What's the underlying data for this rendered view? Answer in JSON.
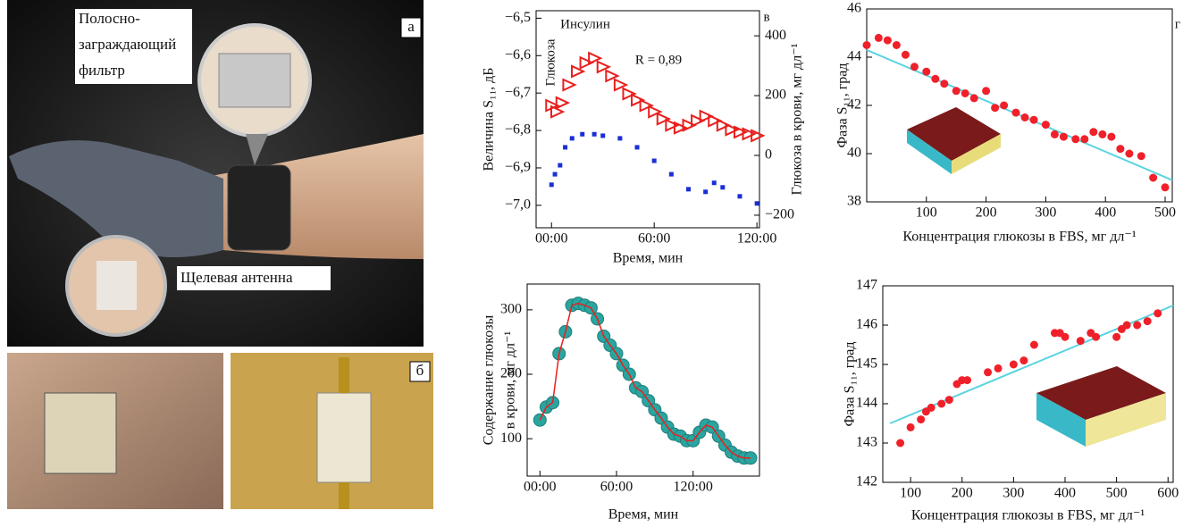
{
  "panels": {
    "a": {
      "label": "а",
      "filter_label": [
        "Полосно-",
        "заграждающий",
        "фильтр"
      ],
      "antenna_label": "Щелевая антенна"
    },
    "b": {
      "label": "б"
    }
  },
  "chart_data": [
    {
      "type": "line",
      "panel_label": "в",
      "annotations": [
        "Глюкоза",
        "Инсулин",
        "R = 0,89"
      ],
      "xlabel": "Время, мин",
      "ylabel": [
        "Величина S₁₁, дБ"
      ],
      "y2label": "Глюкоза в крови, мг дл⁻¹",
      "xlim": [
        -9,
        121.5
      ],
      "xticks": [
        {
          "value": 0,
          "label": "00:00"
        },
        {
          "value": 60,
          "label": "60:00"
        },
        {
          "value": 120,
          "label": "120:00"
        }
      ],
      "ylim": [
        -7.06,
        -6.48
      ],
      "yticks": [
        {
          "value": -6.5,
          "label": "−6,5"
        },
        {
          "value": -6.6,
          "label": "−6,6"
        },
        {
          "value": -6.7,
          "label": "−6,7"
        },
        {
          "value": -6.8,
          "label": "−6,8"
        },
        {
          "value": -6.9,
          "label": "−6,9"
        },
        {
          "value": -7.0,
          "label": "−7,0"
        }
      ],
      "y2lim": [
        -242,
        484
      ],
      "y2ticks": [
        400,
        200,
        0,
        {
          "value": -200,
          "label": "−200"
        }
      ],
      "series": [
        {
          "color": "#e8201e",
          "marker": "triangle",
          "axis": "y2",
          "x": [
            0,
            3,
            6,
            10,
            15,
            20,
            25,
            30,
            35,
            40,
            45,
            50,
            55,
            60,
            65,
            70,
            75,
            80,
            85,
            90,
            95,
            100,
            105,
            110,
            115,
            120
          ],
          "values": [
            167,
            146,
            176,
            236,
            281,
            310,
            325,
            296,
            266,
            236,
            206,
            185,
            167,
            146,
            122,
            101,
            92,
            101,
            116,
            131,
            116,
            101,
            86,
            78,
            72,
            66
          ]
        },
        {
          "color": "#1a2fd6",
          "marker": "square",
          "x": [
            0,
            2,
            5,
            8,
            12,
            18,
            25,
            30,
            40,
            50,
            60,
            70,
            80,
            90,
            95,
            100,
            110,
            120
          ],
          "values": [
            -6.945,
            -6.917,
            -6.893,
            -6.845,
            -6.821,
            -6.81,
            -6.81,
            -6.814,
            -6.821,
            -6.845,
            -6.881,
            -6.917,
            -6.957,
            -6.964,
            -6.94,
            -6.952,
            -6.976,
            -6.995
          ]
        }
      ]
    },
    {
      "type": "line",
      "xlabel": "Время, мин",
      "ylabel": [
        "Содержание глюкозы",
        "в крови, мг дл⁻¹"
      ],
      "xlim": [
        -10,
        172
      ],
      "xticks": [
        {
          "value": 0,
          "label": "00:00"
        },
        {
          "value": 60,
          "label": "60:00"
        },
        {
          "value": 120,
          "label": "120:00"
        }
      ],
      "ylim": [
        42,
        340
      ],
      "yticks": [
        100,
        200,
        300
      ],
      "series": [
        {
          "color": "#2aa5a0",
          "marker": "circle",
          "line_color": "#e8201e",
          "x": [
            0,
            5,
            10,
            15,
            20,
            25,
            30,
            35,
            40,
            45,
            50,
            55,
            60,
            65,
            70,
            75,
            80,
            85,
            90,
            95,
            100,
            105,
            110,
            115,
            120,
            125,
            130,
            135,
            140,
            145,
            150,
            155,
            160,
            165
          ],
          "values": [
            129,
            149,
            156,
            232,
            266,
            307,
            310,
            307,
            303,
            286,
            259,
            245,
            232,
            214,
            200,
            179,
            173,
            159,
            145,
            132,
            118,
            107,
            104,
            97,
            97,
            110,
            121,
            118,
            104,
            90,
            79,
            73,
            70,
            70
          ]
        }
      ]
    },
    {
      "type": "scatter",
      "panel_label": "г",
      "xlabel": "Концентрация глюкозы в FBS, мг дл⁻¹",
      "ylabel": [
        "Фаза S₁₁, град"
      ],
      "xlim": [
        0,
        512
      ],
      "xticks": [
        100,
        200,
        300,
        400,
        500
      ],
      "ylim": [
        38,
        46
      ],
      "yticks": [
        38,
        40,
        42,
        44,
        46
      ],
      "series": [
        {
          "color": "#5ad4e0",
          "marker": "none",
          "x": [
            0,
            512
          ],
          "values": [
            44.3,
            38.9
          ]
        },
        {
          "color": "#f0202a",
          "marker": "dot",
          "x": [
            0,
            20,
            35,
            50,
            65,
            80,
            100,
            115,
            130,
            150,
            165,
            180,
            200,
            215,
            230,
            250,
            265,
            280,
            300,
            315,
            330,
            350,
            365,
            380,
            395,
            410,
            425,
            440,
            460,
            480,
            500
          ],
          "values": [
            44.5,
            44.8,
            44.7,
            44.5,
            44.1,
            43.6,
            43.4,
            43.1,
            42.9,
            42.6,
            42.5,
            42.3,
            42.6,
            41.9,
            42.0,
            41.7,
            41.5,
            41.4,
            41.2,
            40.8,
            40.7,
            40.6,
            40.6,
            40.9,
            40.8,
            40.7,
            40.2,
            40.0,
            39.9,
            39.0,
            38.6
          ]
        }
      ]
    },
    {
      "type": "scatter",
      "xlabel": "Концентрация глюкозы в FBS, мг дл⁻¹",
      "ylabel": [
        "Фаза S₁₁, град"
      ],
      "xlim": [
        46,
        610
      ],
      "xticks": [
        100,
        200,
        300,
        400,
        500,
        600
      ],
      "ylim": [
        142,
        147
      ],
      "yticks": [
        142,
        143,
        144,
        145,
        146,
        147
      ],
      "series": [
        {
          "color": "#5ad4e0",
          "marker": "none",
          "x": [
            60,
            610
          ],
          "values": [
            143.5,
            146.5
          ]
        },
        {
          "color": "#f0202a",
          "marker": "dot",
          "x": [
            80,
            100,
            120,
            130,
            140,
            160,
            175,
            190,
            200,
            210,
            250,
            270,
            300,
            320,
            340,
            380,
            390,
            400,
            430,
            450,
            460,
            500,
            510,
            520,
            540,
            560,
            580
          ],
          "values": [
            143.0,
            143.4,
            143.6,
            143.8,
            143.9,
            144.0,
            144.1,
            144.5,
            144.6,
            144.6,
            144.8,
            144.9,
            145.0,
            145.1,
            145.5,
            145.8,
            145.8,
            145.7,
            145.6,
            145.8,
            145.7,
            145.7,
            145.9,
            146.0,
            146.0,
            146.1,
            146.3
          ]
        }
      ]
    }
  ]
}
